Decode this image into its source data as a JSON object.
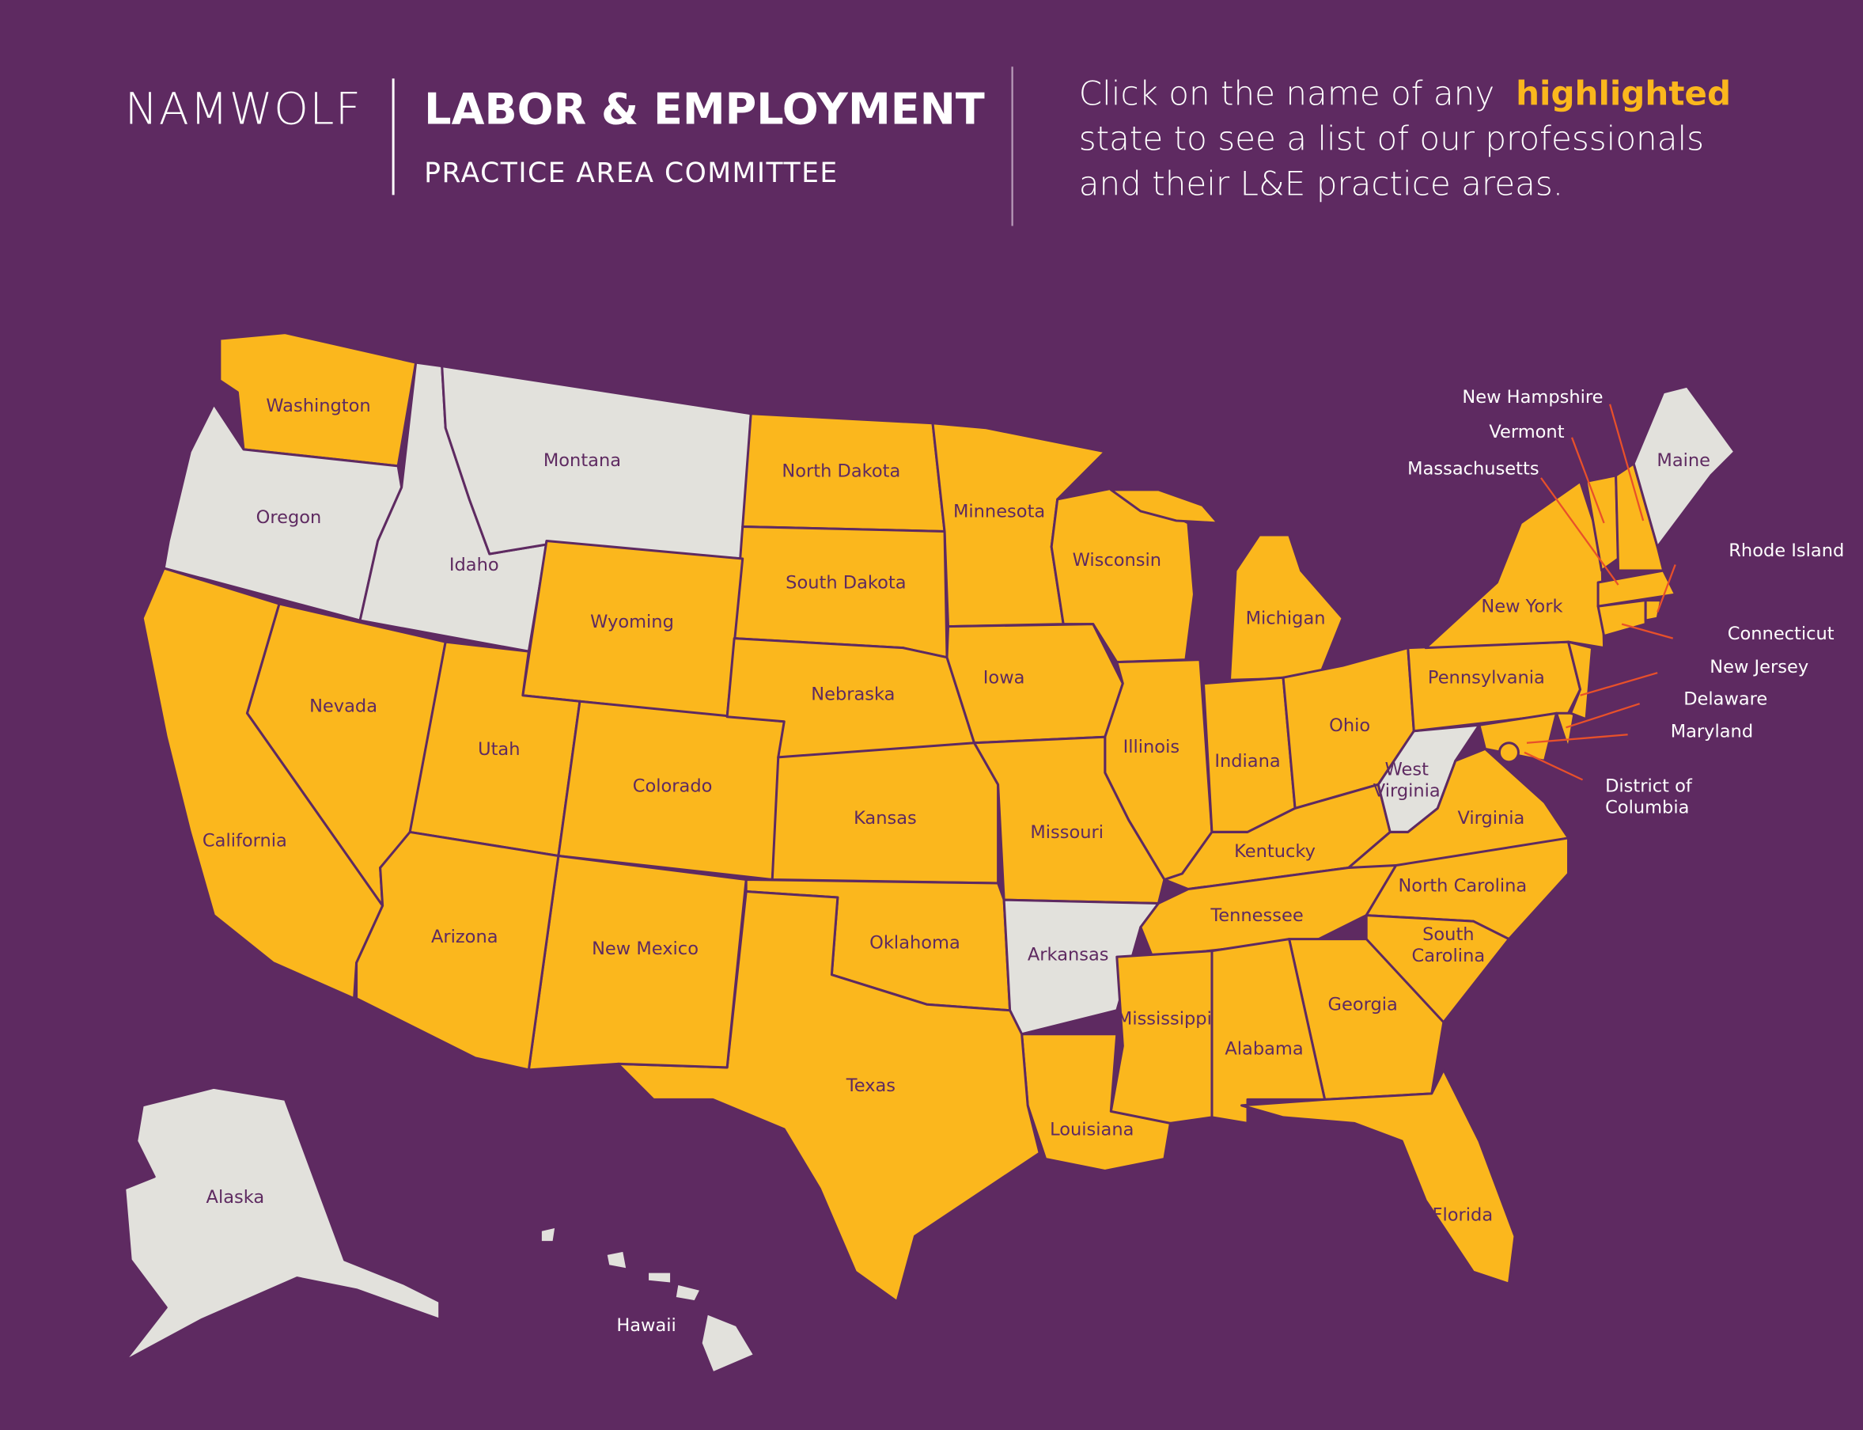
{
  "header": {
    "logo": "NAMWOLF",
    "title": "LABOR & EMPLOYMENT",
    "subtitle": "PRACTICE AREA COMMITTEE"
  },
  "instruction": {
    "line1": "Click on the name of any",
    "emphasis": "highlighted",
    "line2": "state to see a list of our professionals",
    "line3": "and their L&E practice areas."
  },
  "colors": {
    "background": "#5e2a61",
    "highlighted": "#fbb71d",
    "other": "#e2e1dc",
    "emphasis": "#fbb71d"
  },
  "states": [
    {
      "label": [
        "Washington"
      ],
      "highlighted": true
    },
    {
      "label": [
        "Oregon"
      ],
      "highlighted": false
    },
    {
      "label": [
        "Idaho"
      ],
      "highlighted": false
    },
    {
      "label": [
        "Montana"
      ],
      "highlighted": false
    },
    {
      "label": [
        "North Dakota"
      ],
      "highlighted": true
    },
    {
      "label": [
        "Minnesota"
      ],
      "highlighted": true
    },
    {
      "label": [
        "Wisconsin"
      ],
      "highlighted": true
    },
    {
      "label": [
        "Michigan"
      ],
      "highlighted": true
    },
    {
      "label": [
        "South Dakota"
      ],
      "highlighted": true
    },
    {
      "label": [
        "Wyoming"
      ],
      "highlighted": true
    },
    {
      "label": [
        "Nevada"
      ],
      "highlighted": true
    },
    {
      "label": [
        "California"
      ],
      "highlighted": true
    },
    {
      "label": [
        "Utah"
      ],
      "highlighted": true
    },
    {
      "label": [
        "Colorado"
      ],
      "highlighted": true
    },
    {
      "label": [
        "Nebraska"
      ],
      "highlighted": true
    },
    {
      "label": [
        "Iowa"
      ],
      "highlighted": true
    },
    {
      "label": [
        "Illinois"
      ],
      "highlighted": true
    },
    {
      "label": [
        "Indiana"
      ],
      "highlighted": true
    },
    {
      "label": [
        "Ohio"
      ],
      "highlighted": true
    },
    {
      "label": [
        "Kentucky"
      ],
      "highlighted": true
    },
    {
      "label": [
        "West",
        "Virginia"
      ],
      "highlighted": false
    },
    {
      "label": [
        "Pennsylvania"
      ],
      "highlighted": true
    },
    {
      "label": [
        "New York"
      ],
      "highlighted": true
    },
    {
      "label": [
        "Virginia"
      ],
      "highlighted": true
    },
    {
      "label": [
        "Maryland"
      ],
      "highlighted": true
    },
    {
      "label": [
        "Delaware"
      ],
      "highlighted": true
    },
    {
      "label": [
        "New Jersey"
      ],
      "highlighted": true
    },
    {
      "label": [
        "Connecticut"
      ],
      "highlighted": true
    },
    {
      "label": [
        "Rhode Island"
      ],
      "highlighted": true
    },
    {
      "label": [
        "Massachusetts"
      ],
      "highlighted": true
    },
    {
      "label": [
        "Vermont"
      ],
      "highlighted": true
    },
    {
      "label": [
        "New Hampshire"
      ],
      "highlighted": true
    },
    {
      "label": [
        "Maine"
      ],
      "highlighted": false
    },
    {
      "label": [
        "Kansas"
      ],
      "highlighted": true
    },
    {
      "label": [
        "Missouri"
      ],
      "highlighted": true
    },
    {
      "label": [
        "Oklahoma"
      ],
      "highlighted": true
    },
    {
      "label": [
        "Arkansas"
      ],
      "highlighted": false
    },
    {
      "label": [
        "Tennessee"
      ],
      "highlighted": true
    },
    {
      "label": [
        "North Carolina"
      ],
      "highlighted": true
    },
    {
      "label": [
        "South",
        "Carolina"
      ],
      "highlighted": true
    },
    {
      "label": [
        "Georgia"
      ],
      "highlighted": true
    },
    {
      "label": [
        "Alabama"
      ],
      "highlighted": true
    },
    {
      "label": [
        "Mississippi"
      ],
      "highlighted": true
    },
    {
      "label": [
        "Louisiana"
      ],
      "highlighted": true
    },
    {
      "label": [
        "Texas"
      ],
      "highlighted": true
    },
    {
      "label": [
        "New Mexico"
      ],
      "highlighted": true
    },
    {
      "label": [
        "Arizona"
      ],
      "highlighted": true
    },
    {
      "label": [
        "Florida"
      ],
      "highlighted": true
    },
    {
      "label": [
        "Alaska"
      ],
      "highlighted": false
    },
    {
      "label": [
        "Hawaii"
      ],
      "highlighted": false
    },
    {
      "label": [
        "District of",
        "Columbia"
      ],
      "highlighted": true
    }
  ]
}
